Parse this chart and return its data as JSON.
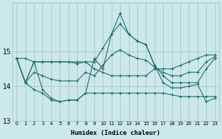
{
  "xlabel": "Humidex (Indice chaleur)",
  "x": [
    0,
    1,
    2,
    3,
    4,
    5,
    6,
    7,
    8,
    9,
    10,
    11,
    12,
    13,
    14,
    15,
    16,
    17,
    18,
    19,
    20,
    21,
    22,
    23
  ],
  "line1": [
    14.8,
    14.8,
    14.7,
    14.7,
    14.7,
    14.7,
    14.7,
    14.7,
    14.7,
    14.5,
    14.4,
    14.3,
    14.3,
    14.3,
    14.3,
    14.3,
    14.5,
    14.5,
    14.5,
    14.6,
    14.7,
    14.8,
    14.9,
    14.9
  ],
  "line2": [
    14.8,
    14.1,
    14.7,
    14.7,
    14.7,
    14.7,
    14.7,
    14.65,
    14.7,
    14.7,
    15.1,
    15.5,
    15.8,
    15.5,
    15.3,
    15.2,
    14.6,
    14.3,
    14.1,
    14.1,
    14.1,
    14.1,
    14.5,
    14.8
  ],
  "line3": [
    14.8,
    14.1,
    14.4,
    14.3,
    14.2,
    14.15,
    14.15,
    14.15,
    14.4,
    14.3,
    14.6,
    14.9,
    15.05,
    14.9,
    14.8,
    14.75,
    14.55,
    14.4,
    14.3,
    14.3,
    14.4,
    14.4,
    14.7,
    14.85
  ],
  "line4": [
    14.8,
    14.1,
    13.9,
    13.8,
    13.6,
    13.55,
    13.6,
    13.6,
    13.8,
    13.8,
    13.8,
    13.8,
    13.8,
    13.8,
    13.8,
    13.8,
    13.8,
    13.8,
    13.75,
    13.7,
    13.7,
    13.7,
    13.7,
    13.7
  ],
  "line5": [
    14.8,
    14.1,
    14.7,
    13.9,
    13.65,
    13.55,
    13.6,
    13.6,
    13.8,
    14.8,
    14.5,
    15.5,
    16.1,
    15.5,
    15.3,
    15.2,
    14.6,
    14.1,
    13.95,
    13.95,
    14.0,
    14.05,
    13.55,
    13.65
  ],
  "bg_color": "#cce8e8",
  "grid_color": "#aacccc",
  "line_color": "#1a6b6b",
  "ylim": [
    13.0,
    16.4
  ],
  "yticks": [
    13,
    14,
    15
  ],
  "marker": "+"
}
